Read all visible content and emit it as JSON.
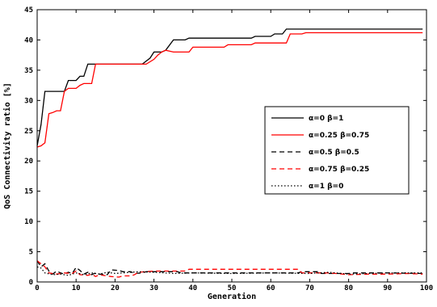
{
  "chart_data": {
    "type": "line",
    "title": "",
    "xlabel": "Generation",
    "ylabel": "QoS Connectivity ratio [%]",
    "xlim": [
      0,
      100
    ],
    "ylim": [
      0,
      45
    ],
    "x_ticks": [
      0,
      10,
      20,
      30,
      40,
      50,
      60,
      70,
      80,
      90,
      100
    ],
    "y_ticks": [
      0,
      5,
      10,
      15,
      20,
      25,
      30,
      35,
      40,
      45
    ],
    "grid": false,
    "legend_position": "center-right",
    "series": [
      {
        "name": "α=0  β=1",
        "color": "#000000",
        "dash": "solid",
        "points": [
          [
            0,
            22.5
          ],
          [
            1,
            26
          ],
          [
            2,
            31.5
          ],
          [
            7,
            31.5
          ],
          [
            8,
            33.3
          ],
          [
            10,
            33.3
          ],
          [
            11,
            34
          ],
          [
            12,
            34
          ],
          [
            13,
            36
          ],
          [
            27,
            36
          ],
          [
            29,
            37
          ],
          [
            30,
            38
          ],
          [
            32,
            38
          ],
          [
            33,
            38.3
          ],
          [
            35,
            40
          ],
          [
            38,
            40
          ],
          [
            39,
            40.3
          ],
          [
            55,
            40.3
          ],
          [
            56,
            40.6
          ],
          [
            60,
            40.6
          ],
          [
            61,
            41
          ],
          [
            63,
            41
          ],
          [
            64,
            41.8
          ],
          [
            99,
            41.8
          ]
        ]
      },
      {
        "name": "α=0.25  β=0.75",
        "color": "#ff0000",
        "dash": "solid",
        "points": [
          [
            0,
            22.3
          ],
          [
            1,
            22.5
          ],
          [
            2,
            23
          ],
          [
            3,
            27.8
          ],
          [
            4,
            28
          ],
          [
            5,
            28.3
          ],
          [
            6,
            28.3
          ],
          [
            7,
            31.5
          ],
          [
            8,
            32
          ],
          [
            10,
            32
          ],
          [
            11,
            32.5
          ],
          [
            12,
            32.8
          ],
          [
            14,
            32.8
          ],
          [
            15,
            36
          ],
          [
            28,
            36
          ],
          [
            30,
            36.8
          ],
          [
            31,
            37.5
          ],
          [
            32,
            38
          ],
          [
            33,
            38.3
          ],
          [
            35,
            38
          ],
          [
            39,
            38
          ],
          [
            40,
            38.8
          ],
          [
            48,
            38.8
          ],
          [
            49,
            39.2
          ],
          [
            55,
            39.2
          ],
          [
            56,
            39.5
          ],
          [
            64,
            39.5
          ],
          [
            65,
            41
          ],
          [
            68,
            41
          ],
          [
            69,
            41.2
          ],
          [
            99,
            41.2
          ]
        ]
      },
      {
        "name": "α=0.5  β=0.5",
        "color": "#000000",
        "dash": "dashed",
        "points": [
          [
            0,
            3.5
          ],
          [
            1,
            2.5
          ],
          [
            2,
            3
          ],
          [
            3,
            1.8
          ],
          [
            4,
            1.3
          ],
          [
            5,
            1.8
          ],
          [
            6,
            1.5
          ],
          [
            7,
            1.3
          ],
          [
            8,
            1.6
          ],
          [
            9,
            1.4
          ],
          [
            10,
            2.4
          ],
          [
            11,
            1.9
          ],
          [
            12,
            1.3
          ],
          [
            13,
            1.6
          ],
          [
            14,
            1.2
          ],
          [
            15,
            1.5
          ],
          [
            16,
            1.3
          ],
          [
            18,
            1.2
          ],
          [
            19,
            2
          ],
          [
            21,
            1.9
          ],
          [
            22,
            1.7
          ],
          [
            24,
            1.7
          ],
          [
            25,
            1.4
          ],
          [
            27,
            1.5
          ],
          [
            28,
            1.7
          ],
          [
            36,
            1.7
          ],
          [
            37,
            1.5
          ],
          [
            50,
            1.5
          ],
          [
            60,
            1.5
          ],
          [
            67,
            1.5
          ],
          [
            68,
            1.7
          ],
          [
            72,
            1.7
          ],
          [
            73,
            1.4
          ],
          [
            80,
            1.4
          ],
          [
            81,
            1.5
          ],
          [
            90,
            1.5
          ],
          [
            99,
            1.4
          ]
        ]
      },
      {
        "name": "α=0.75  β=0.25",
        "color": "#ff0000",
        "dash": "dashed",
        "points": [
          [
            0,
            3.5
          ],
          [
            1,
            3
          ],
          [
            2,
            2.5
          ],
          [
            3,
            1.5
          ],
          [
            5,
            1.3
          ],
          [
            7,
            1.5
          ],
          [
            9,
            1.4
          ],
          [
            10,
            1.8
          ],
          [
            11,
            1.2
          ],
          [
            13,
            1.1
          ],
          [
            14,
            1.3
          ],
          [
            15,
            0.9
          ],
          [
            16,
            1.2
          ],
          [
            17,
            1.1
          ],
          [
            19,
            0.9
          ],
          [
            21,
            0.8
          ],
          [
            22,
            1
          ],
          [
            24,
            1
          ],
          [
            25,
            1.2
          ],
          [
            26,
            1.6
          ],
          [
            30,
            1.8
          ],
          [
            38,
            1.8
          ],
          [
            39,
            2.1
          ],
          [
            67,
            2.1
          ],
          [
            68,
            1.5
          ],
          [
            75,
            1.5
          ],
          [
            80,
            1.2
          ],
          [
            85,
            1.3
          ],
          [
            90,
            1.3
          ],
          [
            95,
            1.4
          ],
          [
            99,
            1.3
          ]
        ]
      },
      {
        "name": "α=1  β=0",
        "color": "#000000",
        "dash": "dotted",
        "points": [
          [
            0,
            2.5
          ],
          [
            1,
            2.3
          ],
          [
            2,
            1.5
          ],
          [
            4,
            1.2
          ],
          [
            6,
            1.3
          ],
          [
            8,
            1.1
          ],
          [
            10,
            1.5
          ],
          [
            12,
            1.2
          ],
          [
            14,
            1.5
          ],
          [
            16,
            1.3
          ],
          [
            18,
            1.6
          ],
          [
            20,
            1.4
          ],
          [
            22,
            1.5
          ],
          [
            26,
            1.7
          ],
          [
            30,
            1.6
          ],
          [
            35,
            1.4
          ],
          [
            40,
            1.5
          ],
          [
            50,
            1.4
          ],
          [
            60,
            1.5
          ],
          [
            70,
            1.4
          ],
          [
            75,
            1.6
          ],
          [
            80,
            1.3
          ],
          [
            90,
            1.5
          ],
          [
            99,
            1.5
          ]
        ]
      }
    ]
  }
}
